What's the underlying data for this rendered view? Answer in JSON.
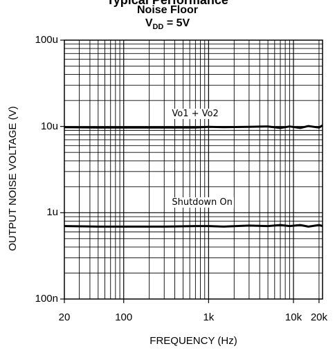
{
  "header": {
    "top_clip": "Typical Performance",
    "title": "Noise Floor",
    "subtitle_main": "V",
    "subtitle_sub": "DD",
    "subtitle_rest": " = 5V"
  },
  "chart_data": {
    "type": "line",
    "x_scale": "log",
    "y_scale": "log",
    "xlim": [
      20,
      22000
    ],
    "ylim": [
      1e-07,
      0.0001
    ],
    "xlabel": "FREQUENCY (Hz)",
    "ylabel": "OUTPUT NOISE VOLTAGE (V)",
    "x_tick_labels": [
      "20",
      "100",
      "1k",
      "10k",
      "20k"
    ],
    "x_tick_values": [
      20,
      100,
      1000,
      10000,
      20000
    ],
    "y_tick_labels": [
      "100n",
      "1u",
      "10u",
      "100u"
    ],
    "y_tick_values": [
      1e-07,
      1e-06,
      1e-05,
      0.0001
    ],
    "grid": true,
    "series": [
      {
        "name": "Vo1 + Vo2",
        "x": [
          20,
          50,
          100,
          300,
          700,
          1000,
          1500,
          3000,
          5000,
          7000,
          9000,
          12000,
          15000,
          20000,
          22000
        ],
        "y": [
          9.8e-06,
          9.7e-06,
          9.7e-06,
          9.7e-06,
          9.7e-06,
          9.9e-06,
          9.8e-06,
          9.9e-06,
          1e-05,
          9.6e-06,
          1e-05,
          9.6e-06,
          1.01e-05,
          9.7e-06,
          1.03e-05
        ]
      },
      {
        "name": "Shutdown On",
        "x": [
          20,
          50,
          100,
          300,
          700,
          1000,
          1500,
          3000,
          5000,
          7000,
          9000,
          12000,
          15000,
          20000,
          22000
        ],
        "y": [
          7e-07,
          6.9e-07,
          6.9e-07,
          6.9e-07,
          7e-07,
          7e-07,
          6.9e-07,
          7.1e-07,
          7e-07,
          7.2e-07,
          7e-07,
          7.2e-07,
          6.9e-07,
          7.2e-07,
          7e-07
        ]
      }
    ]
  }
}
